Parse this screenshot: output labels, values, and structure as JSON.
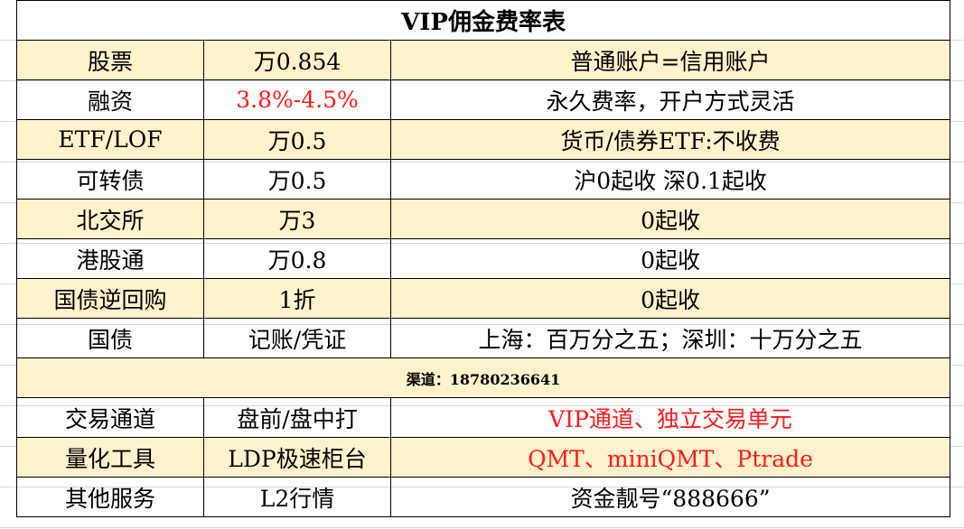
{
  "title": "VIP佣金费率表",
  "colors": {
    "band": "#FFF2CC",
    "highlight": "#FF1A1A"
  },
  "rows": [
    {
      "name": "股票",
      "rate": "万0.854",
      "note": "普通账户=信用账户"
    },
    {
      "name": "融资",
      "rate": "3.8%-4.5%",
      "note": "永久费率，开户方式灵活"
    },
    {
      "name": "ETF/LOF",
      "rate": "万0.5",
      "note": "货币/债券ETF:不收费"
    },
    {
      "name": "可转债",
      "rate": "万0.5",
      "note": "沪0起收 深0.1起收"
    },
    {
      "name": "北交所",
      "rate": "万3",
      "note": "0起收"
    },
    {
      "name": "港股通",
      "rate": "万0.8",
      "note": "0起收"
    },
    {
      "name": "国债逆回购",
      "rate": "1折",
      "note": "0起收"
    },
    {
      "name": "国债",
      "rate": "记账/凭证",
      "note": "上海：百万分之五；深圳：十万分之五"
    }
  ],
  "channel": "渠道：18780236641",
  "services": [
    {
      "name": "交易通道",
      "value": "盘前/盘中打",
      "note": "VIP通道、独立交易单元"
    },
    {
      "name": "量化工具",
      "value": "LDP极速柜台",
      "note": "QMT、miniQMT、Ptrade"
    },
    {
      "name": "其他服务",
      "value": "L2行情",
      "note": "资金靓号“888666”"
    }
  ]
}
